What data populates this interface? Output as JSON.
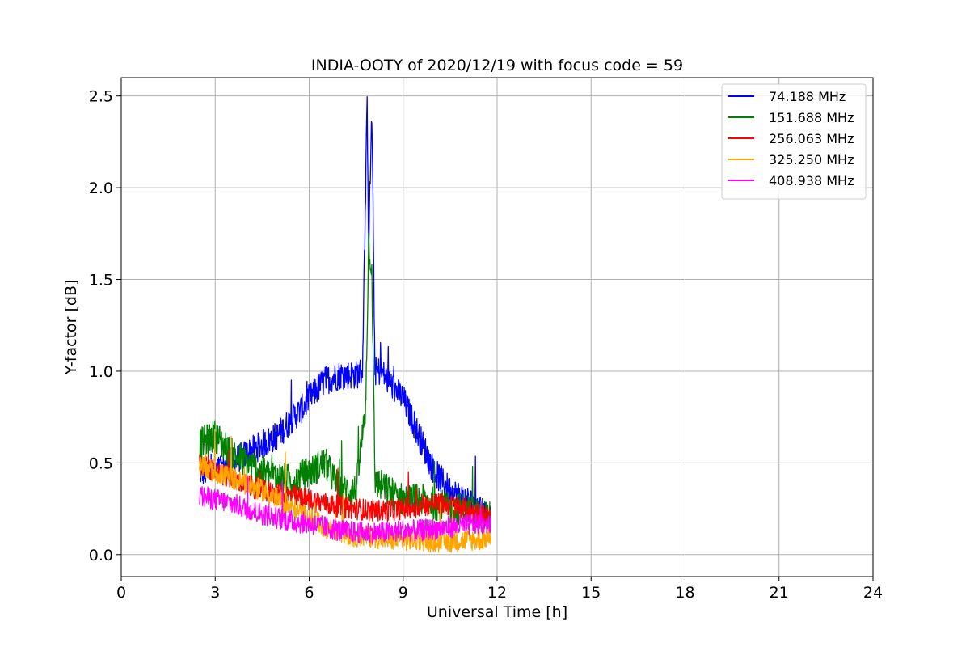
{
  "chart_data": {
    "type": "line",
    "title": "INDIA-OOTY of 2020/12/19 with focus code = 59",
    "xlabel": "Universal Time [h]",
    "ylabel": "Y-factor [dB]",
    "xlim": [
      0,
      24
    ],
    "ylim": [
      -0.12,
      2.6
    ],
    "xticks": [
      0,
      3,
      6,
      9,
      12,
      15,
      18,
      21,
      24
    ],
    "xtick_labels": [
      "0",
      "3",
      "6",
      "9",
      "12",
      "15",
      "18",
      "21",
      "24"
    ],
    "yticks": [
      0.0,
      0.5,
      1.0,
      1.5,
      2.0,
      2.5
    ],
    "ytick_labels": [
      "0.0",
      "0.5",
      "1.0",
      "1.5",
      "2.0",
      "2.5"
    ],
    "grid": true,
    "legend_position": "top-right",
    "series": [
      {
        "name": "74.188 MHz",
        "color": "#0000ff",
        "x": [
          2.5,
          3.0,
          3.5,
          4.0,
          4.5,
          5.0,
          5.5,
          5.8,
          6.0,
          6.5,
          7.0,
          7.5,
          7.7,
          7.85,
          7.9,
          8.0,
          8.1,
          8.3,
          8.5,
          9.0,
          9.5,
          10.0,
          10.5,
          11.0,
          11.5,
          11.8
        ],
        "y": [
          0.45,
          0.45,
          0.5,
          0.55,
          0.6,
          0.65,
          0.75,
          0.8,
          0.85,
          0.95,
          0.98,
          0.98,
          1.0,
          2.45,
          1.7,
          2.4,
          1.0,
          1.0,
          0.95,
          0.85,
          0.65,
          0.45,
          0.35,
          0.3,
          0.25,
          0.2
        ]
      },
      {
        "name": "151.688 MHz",
        "color": "#008000",
        "x": [
          2.5,
          3.0,
          3.5,
          4.0,
          4.5,
          5.0,
          5.5,
          6.0,
          6.5,
          7.0,
          7.5,
          7.8,
          7.9,
          8.0,
          8.1,
          8.5,
          9.0,
          9.5,
          10.0,
          10.5,
          11.0,
          11.5,
          11.8
        ],
        "y": [
          0.6,
          0.65,
          0.55,
          0.5,
          0.45,
          0.42,
          0.4,
          0.45,
          0.5,
          0.35,
          0.35,
          0.8,
          1.7,
          1.55,
          0.4,
          0.35,
          0.3,
          0.3,
          0.28,
          0.25,
          0.25,
          0.22,
          0.2
        ]
      },
      {
        "name": "256.063 MHz",
        "color": "#ff0000",
        "x": [
          2.5,
          3.0,
          3.5,
          4.0,
          4.5,
          5.0,
          5.5,
          6.0,
          6.5,
          7.0,
          7.5,
          8.0,
          8.5,
          9.0,
          9.5,
          10.0,
          10.5,
          11.0,
          11.5,
          11.8
        ],
        "y": [
          0.5,
          0.45,
          0.42,
          0.38,
          0.35,
          0.33,
          0.32,
          0.3,
          0.28,
          0.26,
          0.25,
          0.24,
          0.24,
          0.25,
          0.26,
          0.28,
          0.27,
          0.25,
          0.22,
          0.2
        ]
      },
      {
        "name": "325.250 MHz",
        "color": "#ffa500",
        "x": [
          2.5,
          3.0,
          3.5,
          4.0,
          4.5,
          5.0,
          5.5,
          6.0,
          6.5,
          7.0,
          7.5,
          8.0,
          8.5,
          9.0,
          9.5,
          10.0,
          10.5,
          11.0,
          11.5,
          11.8
        ],
        "y": [
          0.48,
          0.45,
          0.42,
          0.38,
          0.35,
          0.3,
          0.25,
          0.2,
          0.15,
          0.12,
          0.1,
          0.1,
          0.08,
          0.08,
          0.08,
          0.07,
          0.07,
          0.08,
          0.08,
          0.1
        ]
      },
      {
        "name": "408.938 MHz",
        "color": "#ff00ff",
        "x": [
          2.5,
          3.0,
          3.5,
          4.0,
          4.5,
          5.0,
          5.5,
          6.0,
          6.5,
          7.0,
          7.5,
          8.0,
          8.5,
          9.0,
          9.5,
          10.0,
          10.5,
          11.0,
          11.5,
          11.8
        ],
        "y": [
          0.32,
          0.3,
          0.28,
          0.25,
          0.22,
          0.2,
          0.18,
          0.17,
          0.15,
          0.13,
          0.12,
          0.12,
          0.12,
          0.13,
          0.13,
          0.14,
          0.15,
          0.16,
          0.17,
          0.18
        ]
      }
    ]
  }
}
